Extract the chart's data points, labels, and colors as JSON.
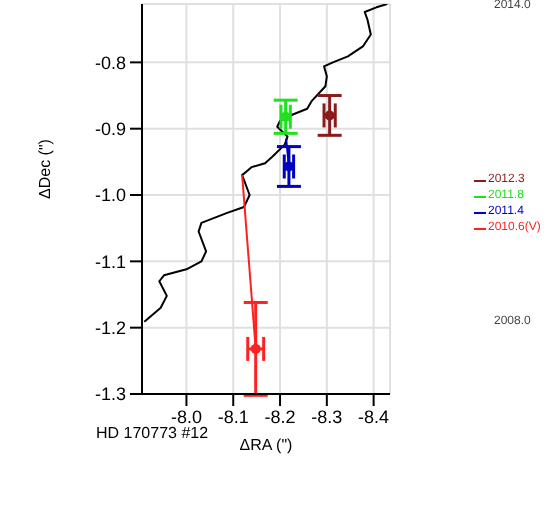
{
  "chart_data": {
    "type": "scatter",
    "xlabel": "ΔRA (\")",
    "ylabel": "ΔDec (\")",
    "xlim": [
      -7.905,
      -8.435
    ],
    "ylim": [
      -1.3,
      -0.712
    ],
    "xticks": [
      {
        "value": -8.0,
        "label": "-8.0"
      },
      {
        "value": -8.1,
        "label": "-8.1"
      },
      {
        "value": -8.2,
        "label": "-8.2"
      },
      {
        "value": -8.3,
        "label": "-8.3"
      },
      {
        "value": -8.4,
        "label": "-8.4"
      }
    ],
    "yticks": [
      {
        "value": -1.3,
        "label": "-1.3"
      },
      {
        "value": -1.2,
        "label": "-1.2"
      },
      {
        "value": -1.1,
        "label": "-1.1"
      },
      {
        "value": -1.0,
        "label": "-1.0"
      },
      {
        "value": -0.9,
        "label": "-0.9"
      },
      {
        "value": -0.8,
        "label": "-0.8"
      }
    ],
    "grid": true,
    "legend": "right",
    "series": [
      {
        "type": "line",
        "color": "#000000",
        "x": [
          -8.429,
          -8.406,
          -8.381,
          -8.387,
          -8.394,
          -8.377,
          -8.345,
          -8.313,
          -8.294,
          -8.3,
          -8.297,
          -8.268,
          -8.258,
          -8.226,
          -8.2,
          -8.194,
          -8.216,
          -8.21,
          -8.184,
          -8.168,
          -8.139,
          -8.129,
          -8.119,
          -8.135,
          -8.123,
          -8.087,
          -8.065,
          -8.032,
          -8.026,
          -8.042,
          -8.032,
          -8.0,
          -7.952,
          -7.942,
          -7.958,
          -7.945,
          -7.91
        ],
        "values": [
          -0.712,
          -0.717,
          -0.724,
          -0.736,
          -0.758,
          -0.776,
          -0.791,
          -0.8,
          -0.806,
          -0.821,
          -0.836,
          -0.858,
          -0.87,
          -0.879,
          -0.888,
          -0.897,
          -0.912,
          -0.924,
          -0.942,
          -0.952,
          -0.958,
          -0.964,
          -0.97,
          -1.0,
          -1.018,
          -1.027,
          -1.033,
          -1.042,
          -1.055,
          -1.085,
          -1.1,
          -1.112,
          -1.121,
          -1.13,
          -1.152,
          -1.17,
          -1.191
        ]
      },
      {
        "type": "line",
        "color": "#ff2020",
        "x": [
          -8.148,
          -8.119
        ],
        "values": [
          -1.232,
          -0.97
        ]
      },
      {
        "type": "line",
        "color": "#0000c0",
        "x": [
          -8.219,
          -8.213
        ],
        "values": [
          -0.957,
          -0.915
        ]
      },
      {
        "name": "2012.3",
        "marker": "circle",
        "color": "#8b1a1a",
        "x": [
          -8.306
        ],
        "values": [
          -0.88
        ],
        "errors": [
          0.03
        ],
        "xerrors": [
          0.012
        ]
      },
      {
        "name": "2011.8",
        "marker": "circle",
        "color": "#20e020",
        "x": [
          -8.212
        ],
        "values": [
          -0.882
        ],
        "errors": [
          0.025
        ],
        "xerrors": [
          0.01
        ]
      },
      {
        "name": "2011.4",
        "marker": "circle",
        "color": "#0000c0",
        "x": [
          -8.219
        ],
        "values": [
          -0.957
        ],
        "errors": [
          0.03
        ],
        "xerrors": [
          0.01
        ]
      },
      {
        "name": "2010.6(V)",
        "marker": "circle",
        "color": "#ff2020",
        "x": [
          -8.148
        ],
        "values": [
          -1.232
        ],
        "errors": [
          0.07
        ],
        "xerrors": [
          0.017
        ]
      }
    ],
    "annotations": [
      "2014.0",
      "2008.0",
      "HD 170773 #12"
    ]
  }
}
